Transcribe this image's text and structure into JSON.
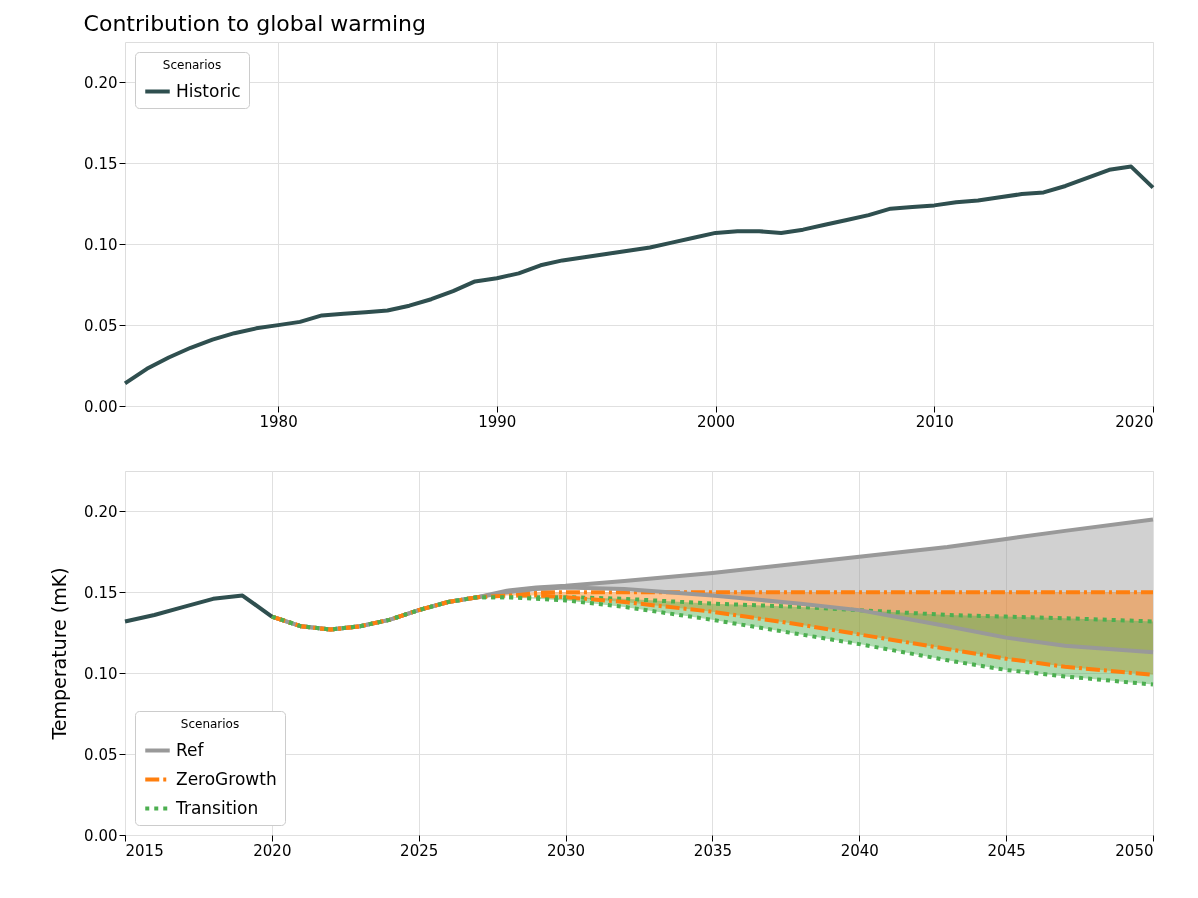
{
  "chart_data": [
    {
      "type": "line",
      "title": "Contribution to global warming",
      "legend_title": "Scenarios",
      "legend": "top left",
      "grid": true,
      "xlim": [
        1973,
        2020
      ],
      "xticks": [
        1980,
        1990,
        2000,
        2010,
        2020
      ],
      "ylim": [
        0,
        0.225
      ],
      "yticks": [
        {
          "value": 0,
          "label": "0.00"
        },
        {
          "value": 0.05,
          "label": "0.05"
        },
        {
          "value": 0.1,
          "label": "0.10"
        },
        {
          "value": 0.15,
          "label": "0.15"
        },
        {
          "value": 0.2,
          "label": "0.20"
        }
      ],
      "series": [
        {
          "name": "Historic",
          "color": "#2f4f4f",
          "line_style": "solid",
          "x": [
            1973,
            1974,
            1975,
            1976,
            1977,
            1978,
            1979,
            1980,
            1981,
            1982,
            1983,
            1984,
            1985,
            1986,
            1987,
            1988,
            1989,
            1990,
            1991,
            1992,
            1993,
            1994,
            1995,
            1996,
            1997,
            1998,
            1999,
            2000,
            2001,
            2002,
            2003,
            2004,
            2005,
            2006,
            2007,
            2008,
            2009,
            2010,
            2011,
            2012,
            2013,
            2014,
            2015,
            2016,
            2017,
            2018,
            2019,
            2020
          ],
          "values": [
            0.014,
            0.023,
            0.03,
            0.036,
            0.041,
            0.045,
            0.048,
            0.05,
            0.052,
            0.056,
            0.057,
            0.058,
            0.059,
            0.062,
            0.066,
            0.071,
            0.077,
            0.079,
            0.082,
            0.087,
            0.09,
            0.092,
            0.094,
            0.096,
            0.098,
            0.101,
            0.104,
            0.107,
            0.108,
            0.108,
            0.107,
            0.109,
            0.112,
            0.115,
            0.118,
            0.122,
            0.123,
            0.124,
            0.126,
            0.127,
            0.129,
            0.131,
            0.132,
            0.136,
            0.141,
            0.146,
            0.148,
            0.135
          ]
        }
      ]
    },
    {
      "type": "line",
      "ylabel": "Temperature (mK)",
      "legend_title": "Scenarios",
      "legend": "bottom left",
      "grid": true,
      "xlim": [
        2015,
        2050
      ],
      "xticks": [
        2015,
        2020,
        2025,
        2030,
        2035,
        2040,
        2045,
        2050
      ],
      "ylim": [
        0,
        0.225
      ],
      "yticks": [
        {
          "value": 0,
          "label": "0.00"
        },
        {
          "value": 0.05,
          "label": "0.05"
        },
        {
          "value": 0.1,
          "label": "0.10"
        },
        {
          "value": 0.15,
          "label": "0.15"
        },
        {
          "value": 0.2,
          "label": "0.20"
        }
      ],
      "series": [
        {
          "name": "Ref",
          "color": "#999999",
          "line_style": "solid",
          "x": [
            2020,
            2021,
            2022,
            2023,
            2024,
            2025,
            2026,
            2027,
            2028,
            2029,
            2030,
            2032,
            2035,
            2038,
            2040,
            2043,
            2045,
            2047,
            2050
          ],
          "values": [
            0.135,
            0.129,
            0.127,
            0.129,
            0.133,
            0.139,
            0.144,
            0.147,
            0.151,
            0.153,
            0.154,
            0.157,
            0.162,
            0.168,
            0.172,
            0.178,
            0.183,
            0.188,
            0.195
          ],
          "upper": [
            0.135,
            0.129,
            0.127,
            0.129,
            0.133,
            0.139,
            0.144,
            0.147,
            0.151,
            0.153,
            0.154,
            0.157,
            0.162,
            0.168,
            0.172,
            0.178,
            0.183,
            0.188,
            0.195
          ],
          "lower": [
            0.135,
            0.129,
            0.127,
            0.129,
            0.133,
            0.139,
            0.144,
            0.147,
            0.15,
            0.152,
            0.153,
            0.152,
            0.148,
            0.143,
            0.139,
            0.129,
            0.122,
            0.117,
            0.113
          ]
        },
        {
          "color": "#999999",
          "line_style": "solid",
          "x": [
            2020,
            2021,
            2022,
            2023,
            2024,
            2025,
            2026,
            2027,
            2028,
            2029,
            2030,
            2032,
            2035,
            2038,
            2040,
            2043,
            2045,
            2047,
            2050
          ],
          "values": [
            0.135,
            0.129,
            0.127,
            0.129,
            0.133,
            0.139,
            0.144,
            0.147,
            0.15,
            0.152,
            0.153,
            0.152,
            0.148,
            0.143,
            0.139,
            0.129,
            0.122,
            0.117,
            0.113
          ]
        },
        {
          "name": "ZeroGrowth",
          "color": "#ff7f0e",
          "line_style": "dashed",
          "x": [
            2020,
            2021,
            2022,
            2023,
            2024,
            2025,
            2026,
            2027,
            2028,
            2029,
            2030,
            2032,
            2035,
            2038,
            2040,
            2043,
            2045,
            2047,
            2050
          ],
          "values": [
            0.135,
            0.129,
            0.127,
            0.129,
            0.133,
            0.139,
            0.144,
            0.147,
            0.149,
            0.15,
            0.15,
            0.15,
            0.15,
            0.15,
            0.15,
            0.15,
            0.15,
            0.15,
            0.15
          ],
          "upper": [
            0.135,
            0.129,
            0.127,
            0.129,
            0.133,
            0.139,
            0.144,
            0.147,
            0.149,
            0.15,
            0.15,
            0.15,
            0.15,
            0.15,
            0.15,
            0.15,
            0.15,
            0.15,
            0.15
          ],
          "lower": [
            0.135,
            0.129,
            0.127,
            0.129,
            0.133,
            0.139,
            0.144,
            0.147,
            0.148,
            0.148,
            0.147,
            0.144,
            0.138,
            0.13,
            0.124,
            0.115,
            0.109,
            0.104,
            0.099
          ]
        },
        {
          "color": "#ff7f0e",
          "line_style": "dashed",
          "x": [
            2020,
            2021,
            2022,
            2023,
            2024,
            2025,
            2026,
            2027,
            2028,
            2029,
            2030,
            2032,
            2035,
            2038,
            2040,
            2043,
            2045,
            2047,
            2050
          ],
          "values": [
            0.135,
            0.129,
            0.127,
            0.129,
            0.133,
            0.139,
            0.144,
            0.147,
            0.148,
            0.148,
            0.147,
            0.144,
            0.138,
            0.13,
            0.124,
            0.115,
            0.109,
            0.104,
            0.099
          ]
        },
        {
          "name": "Transition",
          "color": "#4caf50",
          "line_style": "dotted",
          "x": [
            2020,
            2021,
            2022,
            2023,
            2024,
            2025,
            2026,
            2027,
            2028,
            2029,
            2030,
            2032,
            2035,
            2038,
            2040,
            2043,
            2045,
            2047,
            2050
          ],
          "values": [
            0.135,
            0.129,
            0.127,
            0.129,
            0.133,
            0.139,
            0.144,
            0.147,
            0.147,
            0.147,
            0.147,
            0.146,
            0.143,
            0.141,
            0.139,
            0.136,
            0.135,
            0.134,
            0.132
          ],
          "upper": [
            0.135,
            0.129,
            0.127,
            0.129,
            0.133,
            0.139,
            0.144,
            0.147,
            0.147,
            0.147,
            0.147,
            0.146,
            0.143,
            0.141,
            0.139,
            0.136,
            0.135,
            0.134,
            0.132
          ],
          "lower": [
            0.135,
            0.129,
            0.127,
            0.129,
            0.133,
            0.139,
            0.144,
            0.147,
            0.147,
            0.146,
            0.145,
            0.141,
            0.133,
            0.124,
            0.118,
            0.108,
            0.102,
            0.098,
            0.093
          ]
        },
        {
          "color": "#4caf50",
          "line_style": "dotted",
          "x": [
            2020,
            2021,
            2022,
            2023,
            2024,
            2025,
            2026,
            2027,
            2028,
            2029,
            2030,
            2032,
            2035,
            2038,
            2040,
            2043,
            2045,
            2047,
            2050
          ],
          "values": [
            0.135,
            0.129,
            0.127,
            0.129,
            0.133,
            0.139,
            0.144,
            0.147,
            0.147,
            0.146,
            0.145,
            0.141,
            0.133,
            0.124,
            0.118,
            0.108,
            0.102,
            0.098,
            0.093
          ]
        },
        {
          "color": "#2f4f4f",
          "line_style": "solid",
          "x": [
            2015,
            2016,
            2017,
            2018,
            2019,
            2020
          ],
          "values": [
            0.132,
            0.136,
            0.141,
            0.146,
            0.148,
            0.135
          ]
        }
      ]
    }
  ]
}
